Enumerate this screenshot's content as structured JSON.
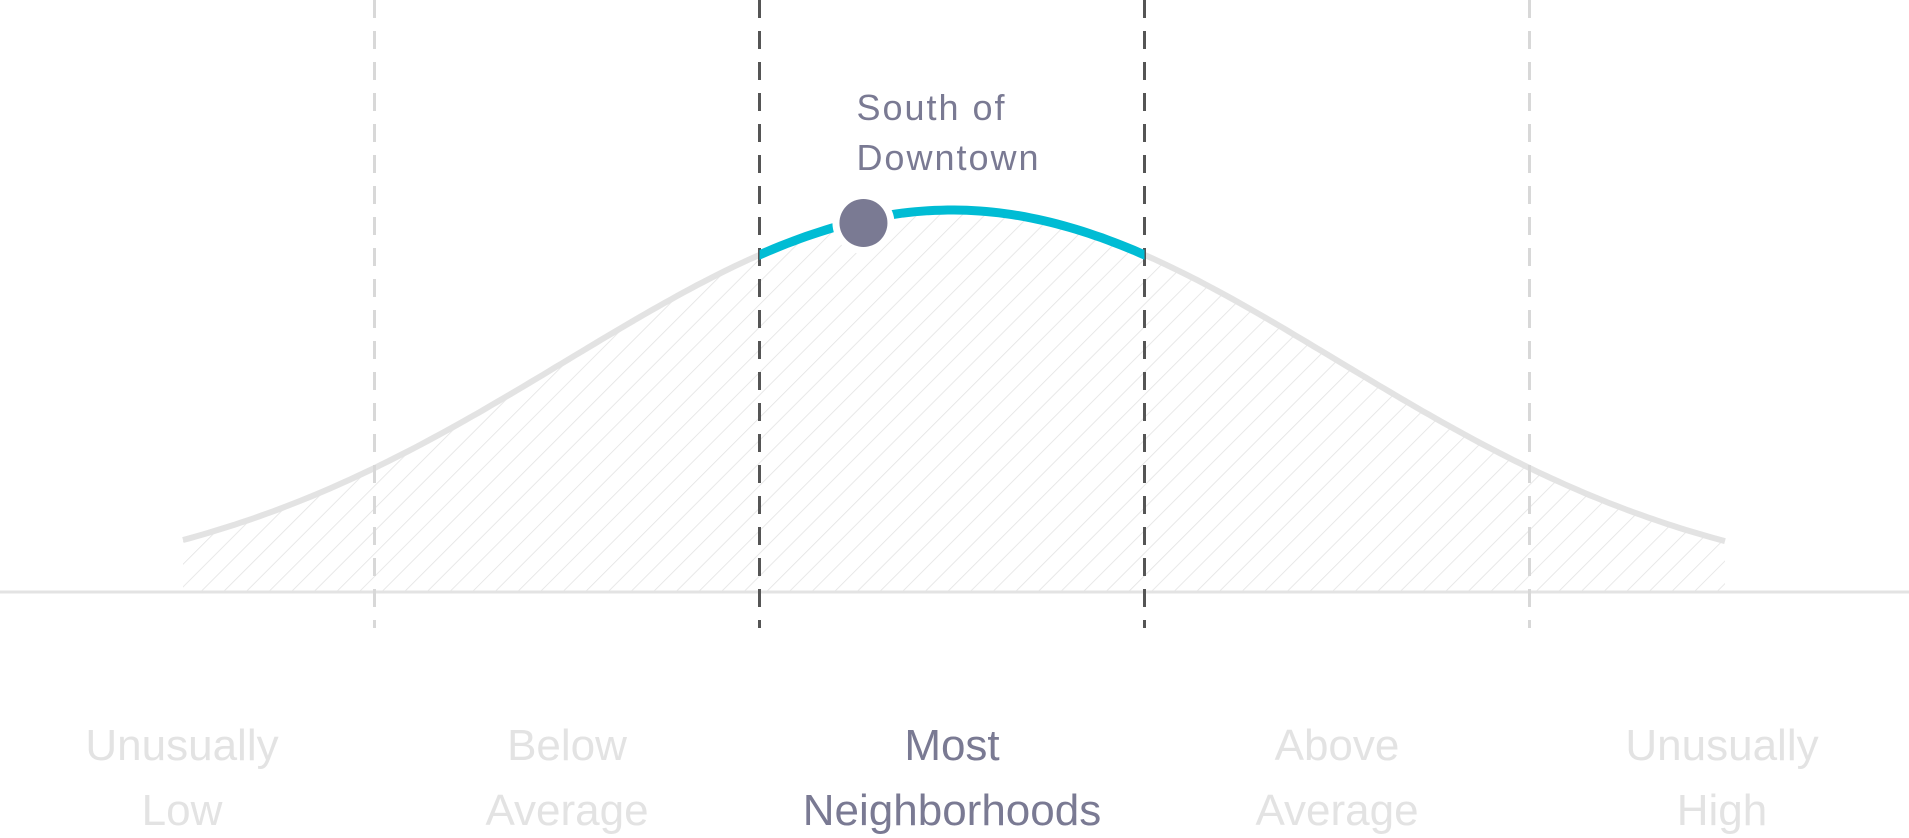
{
  "chart_data": {
    "type": "area",
    "distribution": "normal",
    "categories": [
      {
        "line1": "Unusually",
        "line2": "Low",
        "active": false
      },
      {
        "line1": "Below",
        "line2": "Average",
        "active": false
      },
      {
        "line1": "Most",
        "line2": "Neighborhoods",
        "active": true
      },
      {
        "line1": "Above",
        "line2": "Average",
        "active": false
      },
      {
        "line1": "Unusually",
        "line2": "High",
        "active": false
      }
    ],
    "marker": {
      "label_line1": "South of",
      "label_line2": "Downtown",
      "position_sd": -0.23
    },
    "x_range_sd": [
      -2.5,
      2.5
    ],
    "band_edges_sd": [
      -1.5,
      -0.5,
      0.5,
      1.5
    ],
    "grid": false,
    "legend": "none"
  },
  "colors": {
    "highlight": "#00BCD4",
    "marker": "#7A7A93",
    "active_text": "#7A7A93",
    "inactive_text": "#E3E3E3",
    "curve": "#E3E3E3",
    "hatch": "#E3E3E3",
    "active_divider": "#555555",
    "inactive_divider": "#D8D8D8",
    "baseline": "#E3E3E3"
  }
}
